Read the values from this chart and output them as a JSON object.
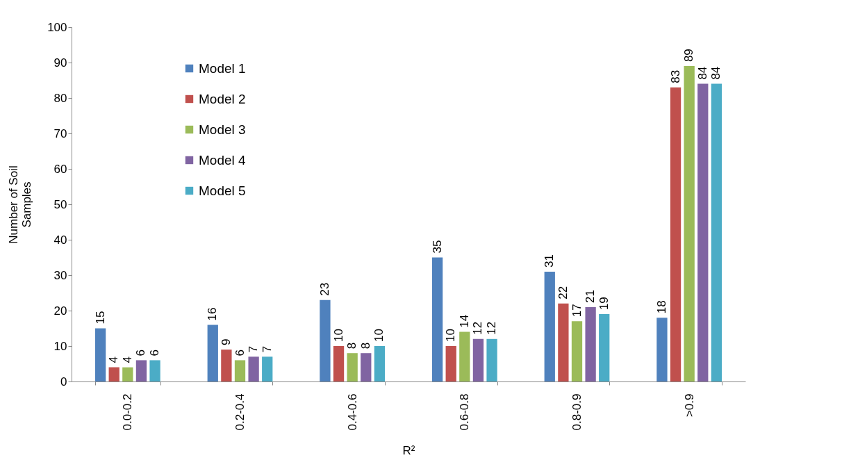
{
  "chart_data": {
    "type": "bar",
    "xlabel": "R²",
    "ylabel": "Number of Soil\nSamples",
    "categories": [
      "0.0-0.2",
      "0.2-0.4",
      "0.4-0.6",
      "0.6-0.8",
      "0.8-0.9",
      ">0.9"
    ],
    "series": [
      {
        "name": "Model 1",
        "color": "#4f81bd",
        "values": [
          15,
          16,
          23,
          35,
          31,
          18
        ]
      },
      {
        "name": "Model 2",
        "color": "#c0504d",
        "values": [
          4,
          9,
          10,
          10,
          22,
          83
        ]
      },
      {
        "name": "Model 3",
        "color": "#9bbb59",
        "values": [
          4,
          6,
          8,
          14,
          17,
          89
        ]
      },
      {
        "name": "Model 4",
        "color": "#8064a2",
        "values": [
          6,
          7,
          8,
          12,
          21,
          84
        ]
      },
      {
        "name": "Model 5",
        "color": "#4bacc6",
        "values": [
          6,
          7,
          10,
          12,
          19,
          84
        ]
      }
    ],
    "ylim": [
      0,
      100
    ],
    "yticks": [
      0,
      10,
      20,
      30,
      40,
      50,
      60,
      70,
      80,
      90,
      100
    ],
    "grid": false,
    "legend": "top left",
    "data_labels": true
  }
}
